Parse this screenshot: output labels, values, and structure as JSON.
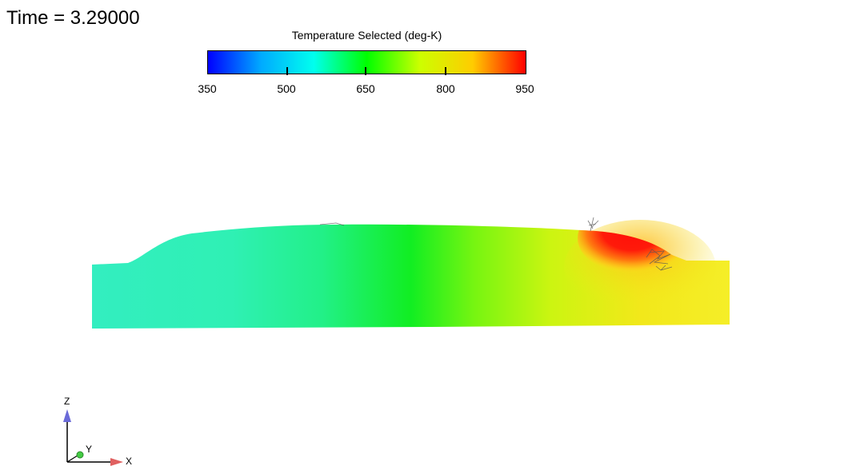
{
  "time_label": "Time = 3.29000",
  "colorbar": {
    "title": "Temperature Selected (deg-K)",
    "min": 350,
    "max": 950,
    "ticks": [
      "350",
      "500",
      "650",
      "800",
      "950"
    ],
    "colors": [
      "#0000ff",
      "#00aaff",
      "#00ffee",
      "#00ff00",
      "#ccff00",
      "#ffcc00",
      "#ff0000"
    ]
  },
  "axes_triad": {
    "z_label": "Z",
    "y_label": "Y",
    "x_label": "X",
    "z_color": "#6a6ad8",
    "x_color": "#e06060",
    "y_color": "#44cc44"
  }
}
